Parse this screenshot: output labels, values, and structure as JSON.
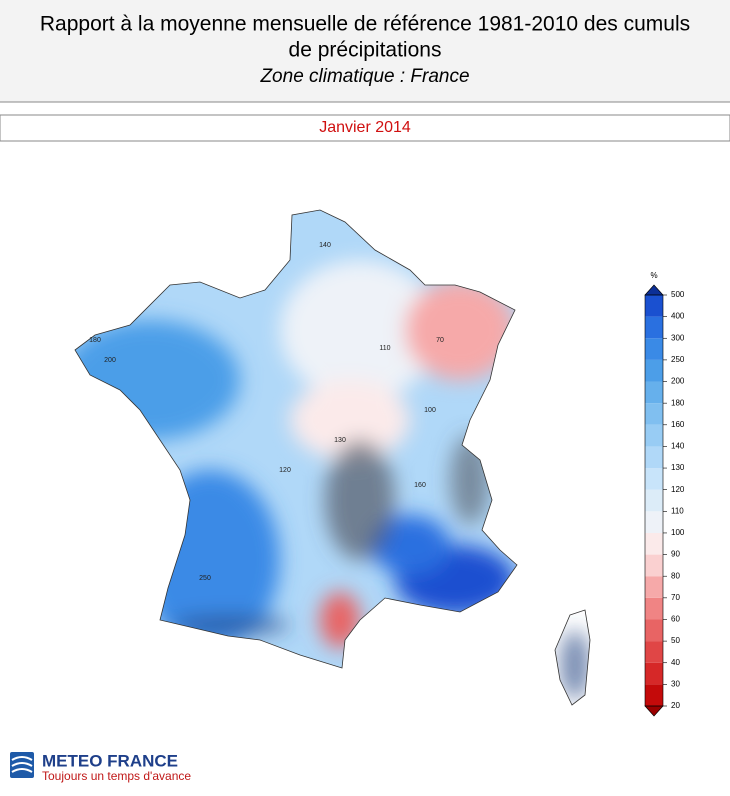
{
  "header": {
    "title_lines": [
      "Rapport à la moyenne mensuelle de référence 1981-2010 des cumuls",
      "de précipitations"
    ],
    "subtitle": "Zone climatique : France"
  },
  "period": "Janvier 2014",
  "map": {
    "contour_labels": [
      "140",
      "180",
      "200",
      "100",
      "110",
      "70",
      "250",
      "120",
      "160",
      "130"
    ]
  },
  "colorbar": {
    "unit": "%",
    "ticks": [
      20,
      30,
      40,
      50,
      60,
      70,
      80,
      90,
      100,
      110,
      120,
      130,
      140,
      160,
      180,
      200,
      250,
      300,
      400,
      500
    ],
    "colors": [
      "#c40a0a",
      "#d62828",
      "#e04646",
      "#e86464",
      "#f08484",
      "#f6a9a9",
      "#fad0d0",
      "#fbeaea",
      "#eef2f8",
      "#dcecf8",
      "#c8e4fa",
      "#b0d8f8",
      "#98ccf4",
      "#80bff0",
      "#66b0ec",
      "#4c9ee8",
      "#3a8ae6",
      "#2a70e0",
      "#1a50d0"
    ],
    "under_color": "#9a0000",
    "over_color": "#0c2f96"
  },
  "logo": {
    "name": "METEO FRANCE",
    "tagline": "Toujours un temps d'avance"
  }
}
